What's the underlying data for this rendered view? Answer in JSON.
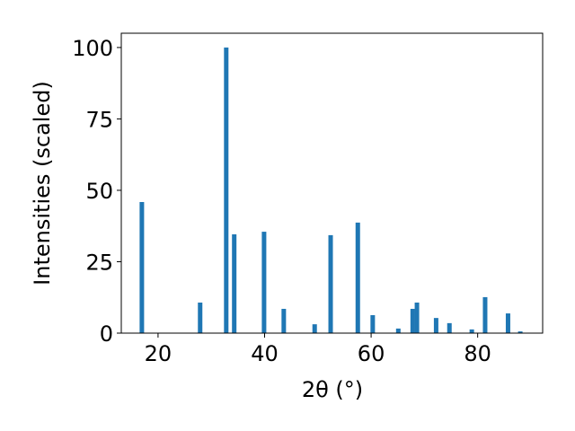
{
  "chart_data": {
    "type": "bar",
    "xlabel": "2θ (°)",
    "ylabel": "Intensities (scaled)",
    "x": [
      16.96,
      27.9,
      32.8,
      34.3,
      39.9,
      43.6,
      49.4,
      52.4,
      57.5,
      60.3,
      65.1,
      67.8,
      68.6,
      72.2,
      74.7,
      78.9,
      81.4,
      85.7,
      88.0
    ],
    "values": [
      45.9,
      10.7,
      100,
      34.6,
      35.5,
      8.5,
      3.1,
      34.3,
      38.7,
      6.3,
      1.6,
      8.5,
      10.7,
      5.3,
      3.5,
      1.3,
      12.6,
      6.9,
      0.6
    ],
    "color": "#1f77b4",
    "xlim": [
      13.1,
      92.2
    ],
    "xticks": [
      20,
      40,
      60,
      80
    ],
    "ylim": [
      0,
      105
    ],
    "yticks": [
      0,
      25,
      50,
      75,
      100
    ]
  }
}
